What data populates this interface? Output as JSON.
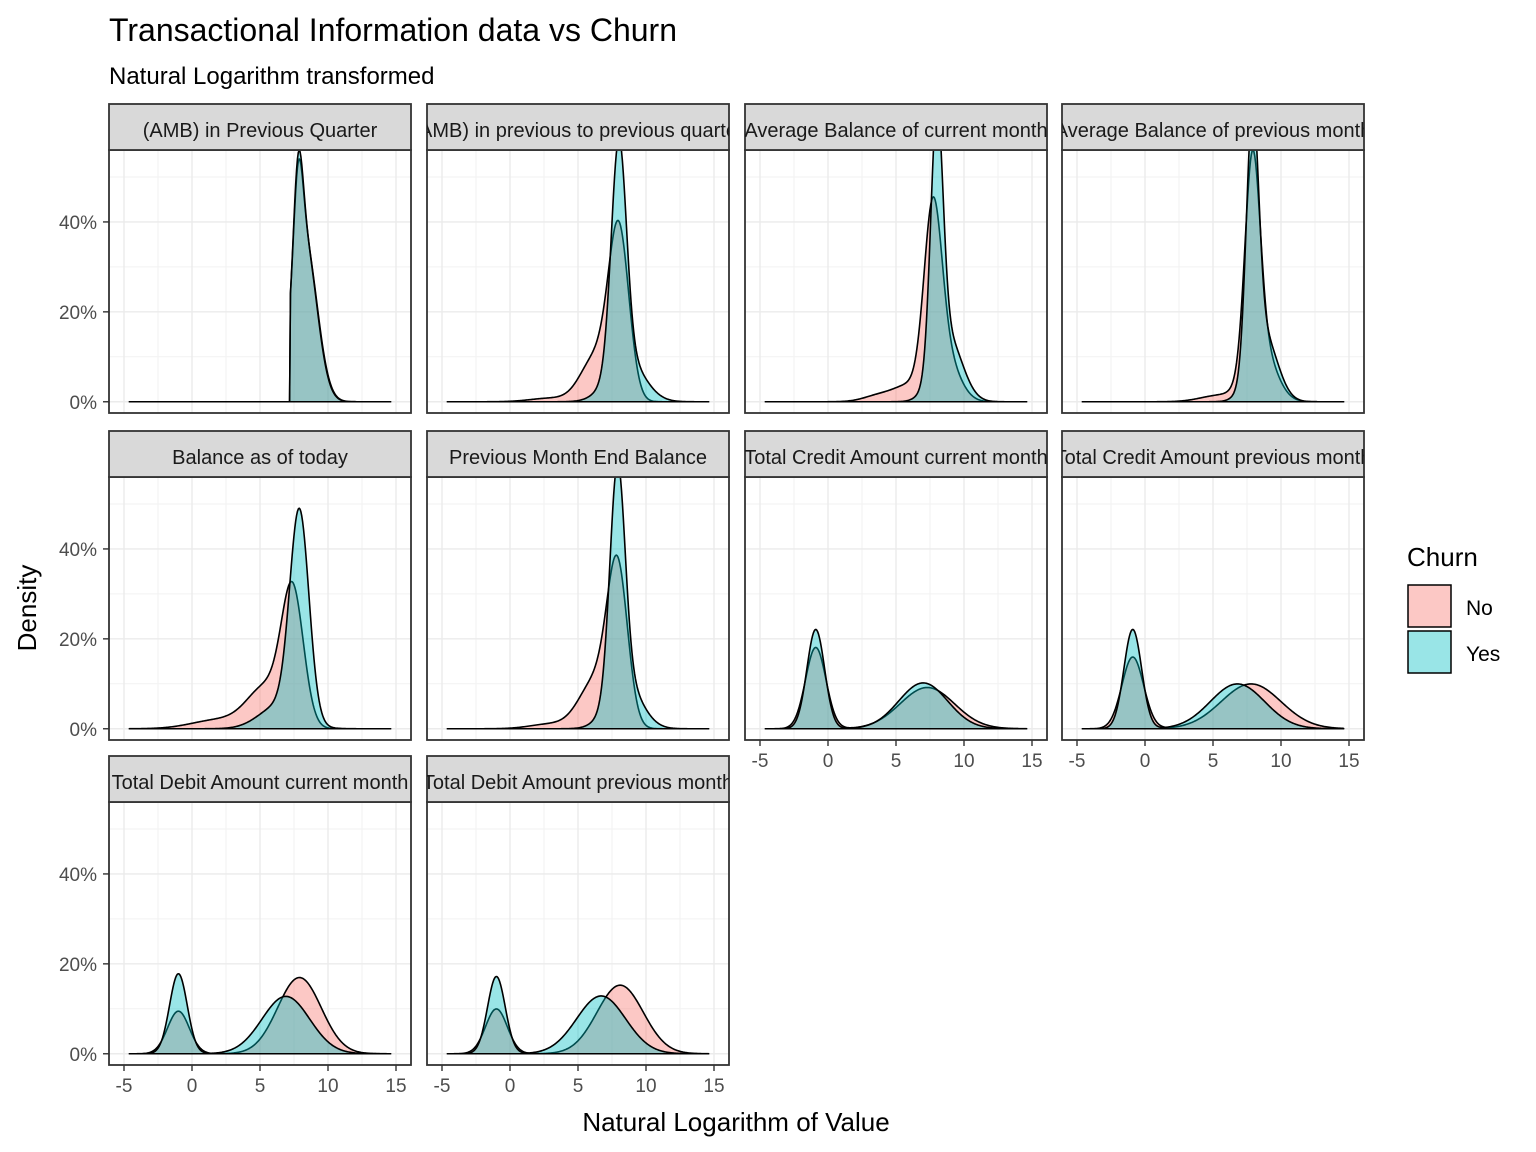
{
  "chart_data": {
    "type": "area",
    "title": "Transactional Information data vs Churn",
    "subtitle": "Natural Logarithm transformed",
    "xlabel": "Natural Logarithm of Value",
    "ylabel": "Density",
    "xlim": [
      -5,
      15
    ],
    "ylim": [
      0,
      0.55
    ],
    "x_ticks": [
      -5,
      0,
      5,
      10,
      15
    ],
    "y_ticks": [
      0,
      0.2,
      0.4
    ],
    "y_tick_labels": [
      "0%",
      "20%",
      "40%"
    ],
    "grid": true,
    "legend": {
      "title": "Churn",
      "position": "right",
      "entries": [
        {
          "label": "No",
          "color": "#F8766D"
        },
        {
          "label": "Yes",
          "color": "#00BFC4"
        }
      ]
    },
    "panels": [
      {
        "label": "(AMB) in Previous Quarter",
        "No": [
          {
            "m": 7.8,
            "s": 0.35,
            "w": 0.2
          },
          {
            "m": 8.3,
            "s": 0.9,
            "w": 0.8
          }
        ],
        "Yes": [
          {
            "m": 7.8,
            "s": 0.35,
            "w": 0.22
          },
          {
            "m": 8.3,
            "s": 0.88,
            "w": 0.78
          }
        ],
        "floor": 7.2
      },
      {
        "label": "(AMB) in previous to previous quarter",
        "No": [
          {
            "m": 8.0,
            "s": 0.75,
            "w": 0.7
          },
          {
            "m": 6.3,
            "s": 1.1,
            "w": 0.27
          },
          {
            "m": 3.0,
            "s": 1.5,
            "w": 0.03
          }
        ],
        "Yes": [
          {
            "m": 8.0,
            "s": 0.55,
            "w": 0.68
          },
          {
            "m": 8.5,
            "s": 1.3,
            "w": 0.32
          }
        ]
      },
      {
        "label": "Average Balance of current month",
        "No": [
          {
            "m": 7.7,
            "s": 0.65,
            "w": 0.62
          },
          {
            "m": 8.6,
            "s": 1.0,
            "w": 0.25
          },
          {
            "m": 6.0,
            "s": 1.0,
            "w": 0.08
          },
          {
            "m": 4.0,
            "s": 1.2,
            "w": 0.05
          }
        ],
        "Yes": [
          {
            "m": 8.0,
            "s": 0.45,
            "w": 0.62
          },
          {
            "m": 8.8,
            "s": 1.05,
            "w": 0.38
          }
        ]
      },
      {
        "label": "Average Balance of previous month",
        "No": [
          {
            "m": 7.9,
            "s": 0.55,
            "w": 0.62
          },
          {
            "m": 8.5,
            "s": 1.05,
            "w": 0.33
          },
          {
            "m": 5.5,
            "s": 1.4,
            "w": 0.05
          }
        ],
        "Yes": [
          {
            "m": 7.9,
            "s": 0.45,
            "w": 0.62
          },
          {
            "m": 8.7,
            "s": 1.0,
            "w": 0.38
          }
        ]
      },
      {
        "label": "Balance as of today",
        "No": [
          {
            "m": 7.4,
            "s": 0.8,
            "w": 0.58
          },
          {
            "m": 5.5,
            "s": 1.4,
            "w": 0.32
          },
          {
            "m": 2.0,
            "s": 2.0,
            "w": 0.1
          }
        ],
        "Yes": [
          {
            "m": 7.9,
            "s": 0.7,
            "w": 0.8
          },
          {
            "m": 6.5,
            "s": 1.5,
            "w": 0.2
          }
        ]
      },
      {
        "label": "Previous Month End Balance",
        "No": [
          {
            "m": 7.9,
            "s": 0.75,
            "w": 0.64
          },
          {
            "m": 6.3,
            "s": 1.2,
            "w": 0.32
          },
          {
            "m": 3.0,
            "s": 1.5,
            "w": 0.04
          }
        ],
        "Yes": [
          {
            "m": 7.9,
            "s": 0.55,
            "w": 0.68
          },
          {
            "m": 8.4,
            "s": 1.2,
            "w": 0.32
          }
        ]
      },
      {
        "label": "Total Credit Amount current month",
        "No": [
          {
            "m": -0.9,
            "s": 0.75,
            "w": 0.34
          },
          {
            "m": 7.3,
            "s": 2.0,
            "w": 0.46
          }
        ],
        "Yes": [
          {
            "m": -0.9,
            "s": 0.65,
            "w": 0.36
          },
          {
            "m": 7.0,
            "s": 1.8,
            "w": 0.46
          }
        ]
      },
      {
        "label": "Total Credit Amount previous month",
        "No": [
          {
            "m": -0.9,
            "s": 0.8,
            "w": 0.32
          },
          {
            "m": 7.8,
            "s": 2.2,
            "w": 0.55
          }
        ],
        "Yes": [
          {
            "m": -0.9,
            "s": 0.65,
            "w": 0.36
          },
          {
            "m": 6.8,
            "s": 2.0,
            "w": 0.5
          }
        ]
      },
      {
        "label": "Total Debit Amount current month",
        "No": [
          {
            "m": -1.0,
            "s": 0.8,
            "w": 0.19
          },
          {
            "m": 7.9,
            "s": 1.6,
            "w": 0.68
          }
        ],
        "Yes": [
          {
            "m": -1.0,
            "s": 0.65,
            "w": 0.29
          },
          {
            "m": 6.9,
            "s": 1.75,
            "w": 0.56
          }
        ]
      },
      {
        "label": "Total Debit Amount previous month",
        "No": [
          {
            "m": -1.0,
            "s": 0.8,
            "w": 0.2
          },
          {
            "m": 8.1,
            "s": 1.7,
            "w": 0.65
          }
        ],
        "Yes": [
          {
            "m": -1.0,
            "s": 0.65,
            "w": 0.28
          },
          {
            "m": 6.7,
            "s": 1.8,
            "w": 0.58
          }
        ]
      }
    ]
  }
}
